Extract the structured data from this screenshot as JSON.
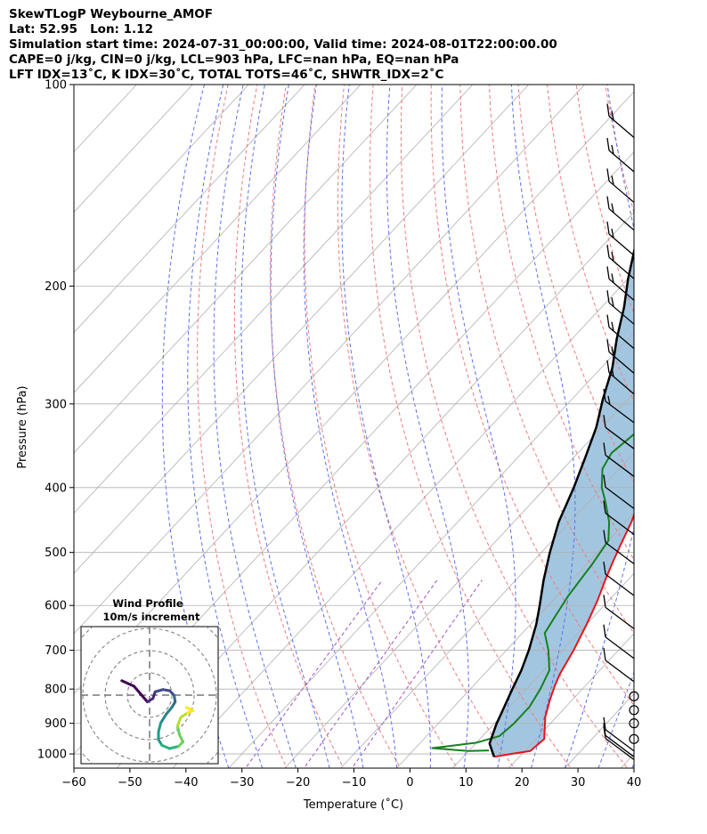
{
  "header": {
    "title": "SkewTLogP Weybourne_AMOF",
    "location": "Lat: 52.95   Lon: 1.12",
    "times": "Simulation start time: 2024-07-31_00:00:00, Valid time: 2024-08-01T22:00:00.00",
    "indices_1": "CAPE=0 j/kg, CIN=0 j/kg, LCL=903 hPa, LFC=nan hPa, EQ=nan hPa",
    "indices_2": "LFT IDX=13˚C, K IDX=30˚C, TOTAL TOTS=46˚C, SHWTR_IDX=2˚C"
  },
  "chart_data": {
    "type": "line",
    "skew_t_log_p": true,
    "xlabel": "Temperature (˚C)",
    "ylabel": "Pressure (hPa)",
    "xlim": [
      -60,
      40
    ],
    "ylim_hpa": [
      1050,
      100
    ],
    "log_y": true,
    "x_ticks": [
      -60,
      -50,
      -40,
      -30,
      -20,
      -10,
      0,
      10,
      20,
      30,
      40
    ],
    "y_ticks": [
      1000,
      900,
      800,
      700,
      600,
      500,
      400,
      300,
      200,
      100
    ],
    "grid": true,
    "colors": {
      "temperature": "#e8141c",
      "dewpoint": "#15801f",
      "parcel": "#000000",
      "shade": "#a3c6e0",
      "dry_adiabat": "#f07a7a",
      "moist_adiabat": "#5a6ff0",
      "mixing_ratio": "#a051c8",
      "isotherm": "#b0b0b0"
    },
    "series": [
      {
        "key": "temperature",
        "points": [
          [
            15.5,
            1010
          ],
          [
            18,
            1000
          ],
          [
            21,
            990
          ],
          [
            21.5,
            950
          ],
          [
            18,
            880
          ],
          [
            16,
            830
          ],
          [
            14.5,
            790
          ],
          [
            13.5,
            760
          ],
          [
            12,
            700
          ],
          [
            10,
            640
          ],
          [
            8,
            590
          ],
          [
            6,
            550
          ],
          [
            4.5,
            520
          ],
          [
            3,
            490
          ],
          [
            1,
            450
          ],
          [
            -1,
            420
          ],
          [
            -3,
            390
          ],
          [
            -5.5,
            355
          ],
          [
            -7,
            330
          ],
          [
            -8,
            310
          ],
          [
            -10,
            295
          ],
          [
            -12,
            275
          ],
          [
            -13.5,
            260
          ],
          [
            -14,
            250
          ],
          [
            -14,
            240
          ],
          [
            -13.5,
            230
          ],
          [
            -12,
            215
          ],
          [
            -10,
            200
          ],
          [
            -7,
            185
          ],
          [
            -4.5,
            172
          ],
          [
            -2,
            160
          ],
          [
            0.5,
            150
          ],
          [
            3.5,
            140
          ],
          [
            6,
            132
          ],
          [
            7.5,
            124
          ],
          [
            9,
            115
          ],
          [
            10,
            107
          ],
          [
            11.5,
            100
          ]
        ]
      },
      {
        "key": "dewpoint",
        "points": [
          [
            13.5,
            988
          ],
          [
            10,
            990
          ],
          [
            3,
            980
          ],
          [
            10,
            962
          ],
          [
            13,
            940
          ],
          [
            13.5,
            900
          ],
          [
            13.5,
            850
          ],
          [
            12.5,
            800
          ],
          [
            11,
            750
          ],
          [
            7.5,
            700
          ],
          [
            4,
            660
          ],
          [
            3,
            620
          ],
          [
            2,
            580
          ],
          [
            1,
            520
          ],
          [
            0,
            480
          ],
          [
            -3,
            450
          ],
          [
            -7,
            420
          ],
          [
            -10,
            400
          ],
          [
            -13,
            375
          ],
          [
            -14,
            355
          ],
          [
            -13,
            330
          ],
          [
            -11,
            305
          ],
          [
            -11.5,
            290
          ],
          [
            -12.5,
            270
          ],
          [
            -14.5,
            255
          ],
          [
            -14.5,
            240
          ],
          [
            -13,
            225
          ],
          [
            -12.5,
            210
          ],
          [
            -13.5,
            195
          ],
          [
            -17,
            183
          ],
          [
            -22,
            170
          ],
          [
            -24,
            165
          ],
          [
            -19,
            145
          ],
          [
            -15.5,
            132
          ],
          [
            -12.5,
            122
          ],
          [
            -10,
            112
          ],
          [
            -7,
            100
          ]
        ]
      },
      {
        "key": "parcel",
        "points": [
          [
            15.5,
            1010
          ],
          [
            12.5,
            965
          ],
          [
            10.5,
            903
          ],
          [
            9,
            850
          ],
          [
            7.5,
            800
          ],
          [
            6,
            750
          ],
          [
            4,
            700
          ],
          [
            1,
            640
          ],
          [
            -1.5,
            600
          ],
          [
            -5,
            550
          ],
          [
            -8.5,
            500
          ],
          [
            -12,
            450
          ],
          [
            -15,
            400
          ],
          [
            -18,
            360
          ],
          [
            -21,
            325
          ],
          [
            -24.5,
            295
          ],
          [
            -28,
            265
          ],
          [
            -32,
            240
          ],
          [
            -36,
            215
          ],
          [
            -40,
            195
          ],
          [
            -44,
            175
          ],
          [
            -48,
            158
          ],
          [
            -52,
            142
          ],
          [
            -56,
            128
          ],
          [
            -60,
            115
          ],
          [
            -64,
            106
          ],
          [
            -67,
            100
          ]
        ]
      }
    ],
    "wind_profile_inset": {
      "title": "Wind Profile",
      "subtitle": "10m/s increment",
      "hodograph": [
        [
          -2.5,
          1.3
        ],
        [
          -1.4,
          0.8
        ],
        [
          -0.8,
          0.1
        ],
        [
          -0.2,
          -0.6
        ],
        [
          0.3,
          -0.3
        ],
        [
          0.5,
          0.3
        ],
        [
          1.2,
          0.5
        ],
        [
          1.8,
          0.4
        ],
        [
          2.2,
          0
        ],
        [
          2.3,
          -0.6
        ],
        [
          2,
          -1.1
        ],
        [
          1.5,
          -1.7
        ],
        [
          1,
          -2.5
        ],
        [
          0.8,
          -3.3
        ],
        [
          0.8,
          -4.0
        ],
        [
          1.1,
          -4.5
        ],
        [
          1.8,
          -4.8
        ],
        [
          2.6,
          -4.6
        ],
        [
          3.0,
          -4.2
        ],
        [
          2.7,
          -3.6
        ],
        [
          2.5,
          -2.8
        ],
        [
          2.8,
          -2.0
        ],
        [
          3.4,
          -1.6
        ],
        [
          3.9,
          -1.4
        ],
        [
          3.3,
          -1.1
        ]
      ]
    },
    "wind_barbs_hpa": [
      120,
      135,
      150,
      165,
      180,
      195,
      210,
      228,
      248,
      270,
      290,
      320,
      350,
      385,
      430,
      470,
      520,
      580,
      650,
      720,
      780,
      820,
      860,
      900,
      950,
      990,
      1010,
      1020
    ]
  }
}
